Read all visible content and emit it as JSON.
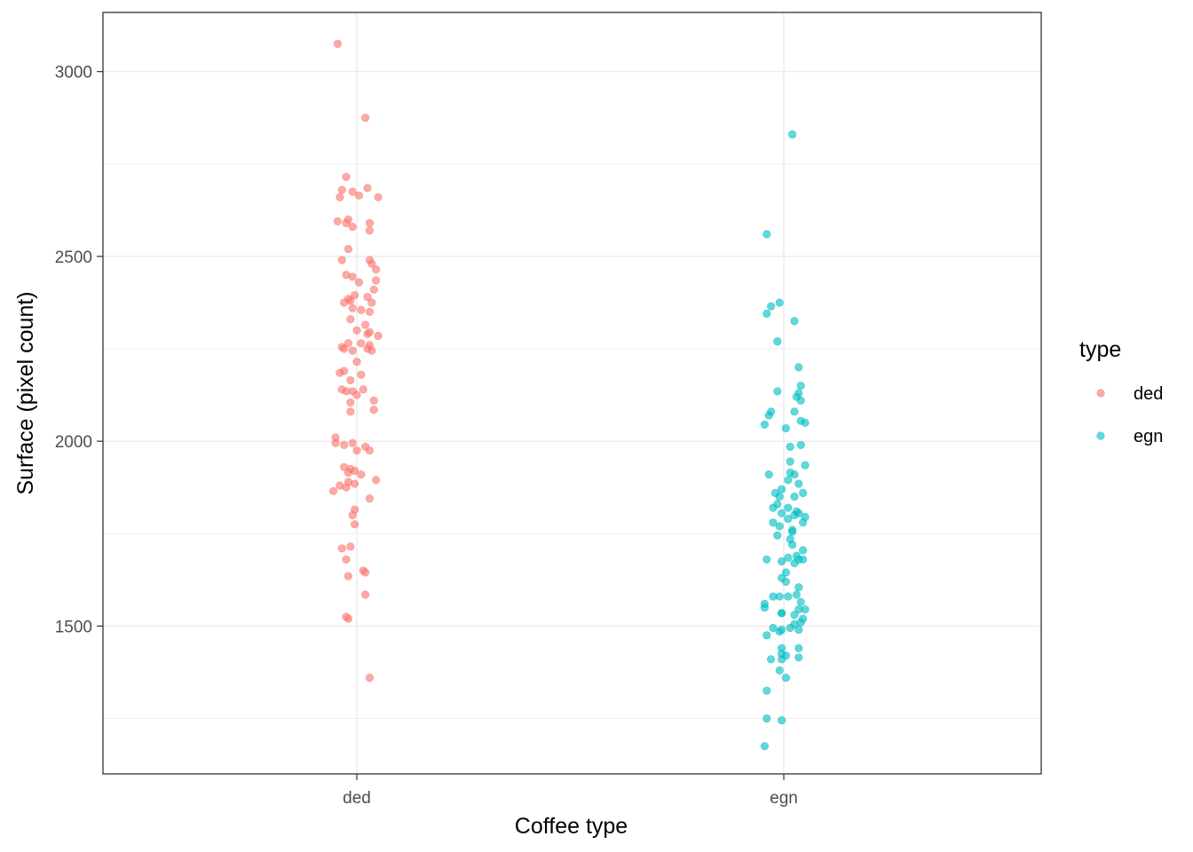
{
  "chart_data": {
    "type": "scatter",
    "title": "",
    "xlabel": "Coffee type",
    "ylabel": "Surface (pixel count)",
    "categories": [
      "ded",
      "egn"
    ],
    "ylim": [
      1100,
      3160
    ],
    "y_ticks": [
      1500,
      2000,
      2500,
      3000
    ],
    "y_tick_labels": [
      "1500",
      "2000",
      "2500",
      "3000"
    ],
    "grid": true,
    "legend": {
      "title": "type",
      "placement": "right",
      "entries": [
        "ded",
        "egn"
      ]
    },
    "series": [
      {
        "name": "ded",
        "color": "#F8766D",
        "points": [
          [
            -0.09,
            3075
          ],
          [
            0.04,
            2875
          ],
          [
            -0.05,
            2715
          ],
          [
            -0.07,
            2680
          ],
          [
            -0.02,
            2675
          ],
          [
            0.05,
            2685
          ],
          [
            -0.08,
            2660
          ],
          [
            0.01,
            2665
          ],
          [
            0.1,
            2660
          ],
          [
            -0.04,
            2600
          ],
          [
            -0.05,
            2590
          ],
          [
            -0.09,
            2595
          ],
          [
            -0.02,
            2580
          ],
          [
            0.06,
            2590
          ],
          [
            0.06,
            2570
          ],
          [
            -0.04,
            2520
          ],
          [
            0.06,
            2490
          ],
          [
            0.07,
            2480
          ],
          [
            -0.07,
            2490
          ],
          [
            0.09,
            2465
          ],
          [
            -0.05,
            2450
          ],
          [
            -0.02,
            2445
          ],
          [
            0.09,
            2435
          ],
          [
            0.01,
            2430
          ],
          [
            0.08,
            2410
          ],
          [
            0.05,
            2390
          ],
          [
            -0.04,
            2385
          ],
          [
            -0.01,
            2395
          ],
          [
            0.07,
            2375
          ],
          [
            -0.06,
            2375
          ],
          [
            -0.03,
            2380
          ],
          [
            -0.02,
            2360
          ],
          [
            0.02,
            2355
          ],
          [
            0.06,
            2350
          ],
          [
            -0.03,
            2330
          ],
          [
            0.04,
            2315
          ],
          [
            0.0,
            2300
          ],
          [
            0.06,
            2295
          ],
          [
            0.05,
            2290
          ],
          [
            0.1,
            2285
          ],
          [
            0.02,
            2265
          ],
          [
            -0.04,
            2265
          ],
          [
            0.06,
            2260
          ],
          [
            -0.07,
            2255
          ],
          [
            -0.06,
            2250
          ],
          [
            -0.02,
            2245
          ],
          [
            0.05,
            2250
          ],
          [
            0.07,
            2245
          ],
          [
            0.0,
            2215
          ],
          [
            -0.08,
            2185
          ],
          [
            -0.06,
            2190
          ],
          [
            0.02,
            2180
          ],
          [
            -0.03,
            2165
          ],
          [
            -0.07,
            2140
          ],
          [
            0.03,
            2140
          ],
          [
            -0.05,
            2135
          ],
          [
            -0.02,
            2135
          ],
          [
            0.0,
            2125
          ],
          [
            0.08,
            2110
          ],
          [
            -0.03,
            2105
          ],
          [
            0.08,
            2085
          ],
          [
            -0.03,
            2080
          ],
          [
            -0.1,
            2010
          ],
          [
            -0.1,
            1995
          ],
          [
            -0.06,
            1990
          ],
          [
            -0.02,
            1995
          ],
          [
            0.04,
            1985
          ],
          [
            0.06,
            1975
          ],
          [
            0.0,
            1975
          ],
          [
            -0.06,
            1930
          ],
          [
            -0.03,
            1925
          ],
          [
            -0.01,
            1920
          ],
          [
            -0.04,
            1915
          ],
          [
            0.02,
            1910
          ],
          [
            0.09,
            1895
          ],
          [
            -0.04,
            1890
          ],
          [
            -0.01,
            1885
          ],
          [
            -0.08,
            1880
          ],
          [
            -0.05,
            1875
          ],
          [
            -0.11,
            1865
          ],
          [
            0.06,
            1845
          ],
          [
            -0.01,
            1815
          ],
          [
            -0.02,
            1800
          ],
          [
            -0.01,
            1775
          ],
          [
            -0.07,
            1710
          ],
          [
            -0.03,
            1715
          ],
          [
            -0.05,
            1680
          ],
          [
            0.03,
            1650
          ],
          [
            0.04,
            1645
          ],
          [
            -0.04,
            1635
          ],
          [
            0.04,
            1585
          ],
          [
            -0.05,
            1525
          ],
          [
            -0.04,
            1520
          ],
          [
            0.06,
            1360
          ]
        ]
      },
      {
        "name": "egn",
        "color": "#00BFC4",
        "points": [
          [
            0.04,
            2830
          ],
          [
            -0.08,
            2560
          ],
          [
            -0.06,
            2365
          ],
          [
            -0.08,
            2345
          ],
          [
            -0.02,
            2375
          ],
          [
            0.05,
            2325
          ],
          [
            -0.03,
            2270
          ],
          [
            0.07,
            2200
          ],
          [
            0.08,
            2150
          ],
          [
            0.06,
            2120
          ],
          [
            0.07,
            2130
          ],
          [
            -0.03,
            2135
          ],
          [
            0.08,
            2110
          ],
          [
            -0.06,
            2080
          ],
          [
            -0.07,
            2070
          ],
          [
            0.05,
            2080
          ],
          [
            0.08,
            2055
          ],
          [
            -0.09,
            2045
          ],
          [
            0.1,
            2050
          ],
          [
            0.01,
            2035
          ],
          [
            0.03,
            1985
          ],
          [
            0.08,
            1990
          ],
          [
            0.03,
            1945
          ],
          [
            0.1,
            1935
          ],
          [
            -0.07,
            1910
          ],
          [
            0.03,
            1915
          ],
          [
            0.05,
            1910
          ],
          [
            0.02,
            1895
          ],
          [
            0.07,
            1885
          ],
          [
            0.09,
            1860
          ],
          [
            -0.01,
            1870
          ],
          [
            -0.04,
            1860
          ],
          [
            -0.02,
            1850
          ],
          [
            0.05,
            1850
          ],
          [
            -0.03,
            1830
          ],
          [
            -0.05,
            1820
          ],
          [
            0.02,
            1820
          ],
          [
            -0.01,
            1805
          ],
          [
            0.05,
            1800
          ],
          [
            0.06,
            1810
          ],
          [
            0.07,
            1805
          ],
          [
            0.1,
            1795
          ],
          [
            0.02,
            1790
          ],
          [
            -0.05,
            1780
          ],
          [
            0.09,
            1780
          ],
          [
            -0.02,
            1770
          ],
          [
            0.04,
            1760
          ],
          [
            0.04,
            1755
          ],
          [
            -0.03,
            1745
          ],
          [
            0.03,
            1735
          ],
          [
            0.04,
            1720
          ],
          [
            0.09,
            1705
          ],
          [
            0.06,
            1690
          ],
          [
            -0.08,
            1680
          ],
          [
            0.02,
            1685
          ],
          [
            0.07,
            1680
          ],
          [
            0.09,
            1680
          ],
          [
            -0.01,
            1675
          ],
          [
            0.05,
            1670
          ],
          [
            0.01,
            1645
          ],
          [
            -0.01,
            1630
          ],
          [
            0.01,
            1620
          ],
          [
            0.07,
            1605
          ],
          [
            -0.05,
            1580
          ],
          [
            -0.02,
            1580
          ],
          [
            0.02,
            1580
          ],
          [
            0.06,
            1585
          ],
          [
            0.08,
            1565
          ],
          [
            0.07,
            1545
          ],
          [
            0.1,
            1545
          ],
          [
            -0.09,
            1560
          ],
          [
            -0.09,
            1550
          ],
          [
            -0.01,
            1535
          ],
          [
            -0.01,
            1535
          ],
          [
            0.05,
            1530
          ],
          [
            0.09,
            1520
          ],
          [
            0.08,
            1510
          ],
          [
            0.05,
            1505
          ],
          [
            -0.05,
            1495
          ],
          [
            0.03,
            1495
          ],
          [
            -0.01,
            1490
          ],
          [
            0.07,
            1490
          ],
          [
            -0.02,
            1485
          ],
          [
            -0.08,
            1475
          ],
          [
            -0.01,
            1440
          ],
          [
            0.07,
            1440
          ],
          [
            -0.01,
            1425
          ],
          [
            0.01,
            1420
          ],
          [
            -0.06,
            1410
          ],
          [
            -0.01,
            1410
          ],
          [
            0.07,
            1415
          ],
          [
            -0.02,
            1380
          ],
          [
            0.01,
            1360
          ],
          [
            -0.08,
            1325
          ],
          [
            -0.08,
            1250
          ],
          [
            -0.01,
            1245
          ],
          [
            -0.09,
            1175
          ]
        ]
      }
    ]
  }
}
